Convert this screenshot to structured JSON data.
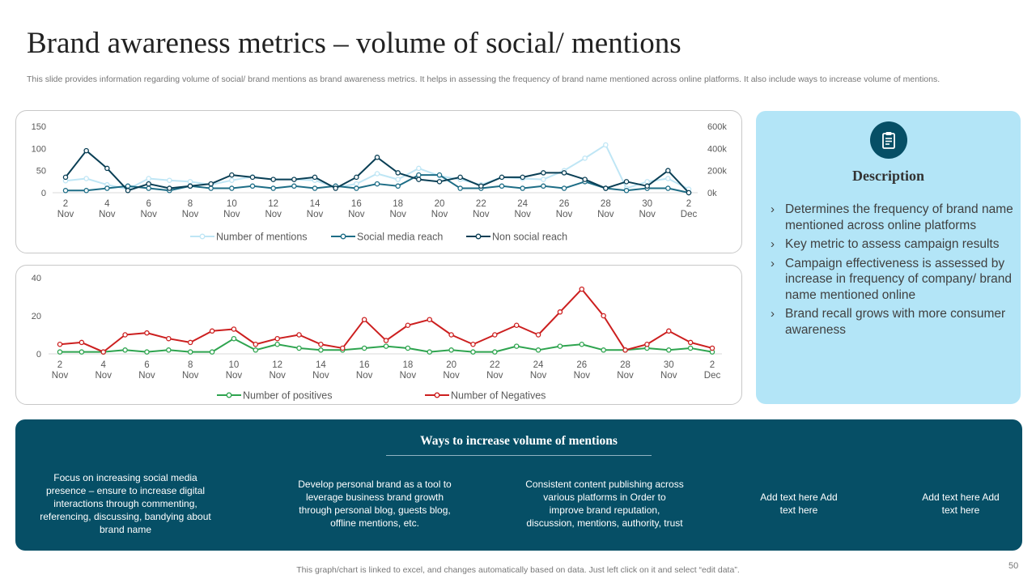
{
  "title": "Brand awareness metrics – volume of social/ mentions",
  "subtitle": "This slide provides information regarding volume of social/ brand mentions as brand awareness metrics. It helps in assessing the frequency of brand name mentioned across online platforms. It also include ways to increase volume of mentions.",
  "colors": {
    "teal_dark": "#064f66",
    "light_blue": "#b3e5f7",
    "series_mentions": "#bfe6f5",
    "series_social": "#1d6d86",
    "series_nonsocial": "#0a3f55",
    "series_positives": "#2ea44f",
    "series_negatives": "#cc1f1f"
  },
  "chart_data": [
    {
      "type": "line",
      "categories": [
        "2 Nov",
        "3 Nov",
        "4 Nov",
        "5 Nov",
        "6 Nov",
        "7 Nov",
        "8 Nov",
        "9 Nov",
        "10 Nov",
        "11 Nov",
        "12 Nov",
        "13 Nov",
        "14 Nov",
        "15 Nov",
        "16 Nov",
        "17 Nov",
        "18 Nov",
        "19 Nov",
        "20 Nov",
        "21 Nov",
        "22 Nov",
        "23 Nov",
        "24 Nov",
        "25 Nov",
        "26 Nov",
        "27 Nov",
        "28 Nov",
        "29 Nov",
        "30 Nov",
        "1 Dec",
        "2 Dec"
      ],
      "tick_labels": [
        {
          "day": "2",
          "month": "Nov"
        },
        {
          "day": "4",
          "month": "Nov"
        },
        {
          "day": "6",
          "month": "Nov"
        },
        {
          "day": "8",
          "month": "Nov"
        },
        {
          "day": "10",
          "month": "Nov"
        },
        {
          "day": "12",
          "month": "Nov"
        },
        {
          "day": "14",
          "month": "Nov"
        },
        {
          "day": "16",
          "month": "Nov"
        },
        {
          "day": "18",
          "month": "Nov"
        },
        {
          "day": "20",
          "month": "Nov"
        },
        {
          "day": "22",
          "month": "Nov"
        },
        {
          "day": "24",
          "month": "Nov"
        },
        {
          "day": "26",
          "month": "Nov"
        },
        {
          "day": "28",
          "month": "Nov"
        },
        {
          "day": "30",
          "month": "Nov"
        },
        {
          "day": "2",
          "month": "Dec"
        }
      ],
      "ylim": [
        0,
        150
      ],
      "yticks": [
        "0",
        "50",
        "100",
        "150"
      ],
      "y2lim": [
        0,
        600
      ],
      "y2ticks": [
        "0k",
        "200k",
        "400k",
        "600k"
      ],
      "series": [
        {
          "name": "Number of mentions",
          "axis": "y",
          "values": [
            27,
            32,
            18,
            8,
            32,
            28,
            25,
            18,
            28,
            36,
            30,
            30,
            28,
            12,
            20,
            43,
            30,
            55,
            38,
            30,
            18,
            35,
            32,
            30,
            50,
            78,
            108,
            10,
            25,
            32,
            8
          ]
        },
        {
          "name": "Social media reach",
          "axis": "y2",
          "values": [
            20,
            20,
            40,
            60,
            40,
            20,
            60,
            40,
            40,
            60,
            40,
            60,
            40,
            60,
            40,
            80,
            60,
            160,
            160,
            40,
            40,
            60,
            40,
            60,
            40,
            100,
            40,
            20,
            40,
            40,
            0
          ]
        },
        {
          "name": "Non social reach",
          "axis": "y2",
          "values": [
            140,
            380,
            220,
            20,
            80,
            40,
            60,
            80,
            160,
            140,
            120,
            120,
            140,
            40,
            140,
            320,
            180,
            120,
            100,
            140,
            60,
            140,
            140,
            180,
            180,
            120,
            40,
            100,
            60,
            200,
            0
          ]
        }
      ]
    },
    {
      "type": "line",
      "categories": [
        "2 Nov",
        "3 Nov",
        "4 Nov",
        "5 Nov",
        "6 Nov",
        "7 Nov",
        "8 Nov",
        "9 Nov",
        "10 Nov",
        "11 Nov",
        "12 Nov",
        "13 Nov",
        "14 Nov",
        "15 Nov",
        "16 Nov",
        "17 Nov",
        "18 Nov",
        "19 Nov",
        "20 Nov",
        "21 Nov",
        "22 Nov",
        "23 Nov",
        "24 Nov",
        "25 Nov",
        "26 Nov",
        "27 Nov",
        "28 Nov",
        "29 Nov",
        "30 Nov",
        "1 Dec",
        "2 Dec"
      ],
      "tick_labels": [
        {
          "day": "2",
          "month": "Nov"
        },
        {
          "day": "4",
          "month": "Nov"
        },
        {
          "day": "6",
          "month": "Nov"
        },
        {
          "day": "8",
          "month": "Nov"
        },
        {
          "day": "10",
          "month": "Nov"
        },
        {
          "day": "12",
          "month": "Nov"
        },
        {
          "day": "14",
          "month": "Nov"
        },
        {
          "day": "16",
          "month": "Nov"
        },
        {
          "day": "18",
          "month": "Nov"
        },
        {
          "day": "20",
          "month": "Nov"
        },
        {
          "day": "22",
          "month": "Nov"
        },
        {
          "day": "24",
          "month": "Nov"
        },
        {
          "day": "26",
          "month": "Nov"
        },
        {
          "day": "28",
          "month": "Nov"
        },
        {
          "day": "30",
          "month": "Nov"
        },
        {
          "day": "2",
          "month": "Dec"
        }
      ],
      "ylim": [
        0,
        40
      ],
      "yticks": [
        "0",
        "20",
        "40"
      ],
      "series": [
        {
          "name": "Number of positives",
          "values": [
            1,
            1,
            1,
            2,
            1,
            2,
            1,
            1,
            8,
            2,
            5,
            3,
            2,
            2,
            3,
            4,
            3,
            1,
            2,
            1,
            1,
            4,
            2,
            4,
            5,
            2,
            2,
            3,
            2,
            3,
            1
          ]
        },
        {
          "name": "Number of Negatives",
          "values": [
            5,
            6,
            1,
            10,
            11,
            8,
            6,
            12,
            13,
            5,
            8,
            10,
            5,
            3,
            18,
            7,
            15,
            18,
            10,
            5,
            10,
            15,
            10,
            22,
            34,
            20,
            2,
            5,
            12,
            6,
            3
          ]
        }
      ]
    }
  ],
  "description": {
    "title": "Description",
    "icon": "clipboard-icon",
    "items": [
      "Determines the frequency of brand name mentioned across online platforms",
      "Key metric to assess campaign results",
      "Campaign effectiveness is assessed by increase in frequency of company/ brand name mentioned online",
      "Brand recall grows with more consumer awareness"
    ]
  },
  "ways": {
    "title": "Ways to increase volume  of mentions",
    "items": [
      "Focus on increasing social media presence – ensure to increase digital interactions through  commenting, referencing,  discussing, bandying about brand name",
      "Develop personal brand as a tool to leverage  business brand growth through personal blog, guests blog, offline mentions, etc.",
      "Consistent content publishing across various platforms in Order to improve brand reputation, discussion, mentions, authority, trust",
      "Add text here Add text here",
      "Add text here Add text here"
    ]
  },
  "footer_note": "This graph/chart is linked to excel,  and changes automatically based on data. Just left click on it and select “edit data”.",
  "page_number": "50"
}
